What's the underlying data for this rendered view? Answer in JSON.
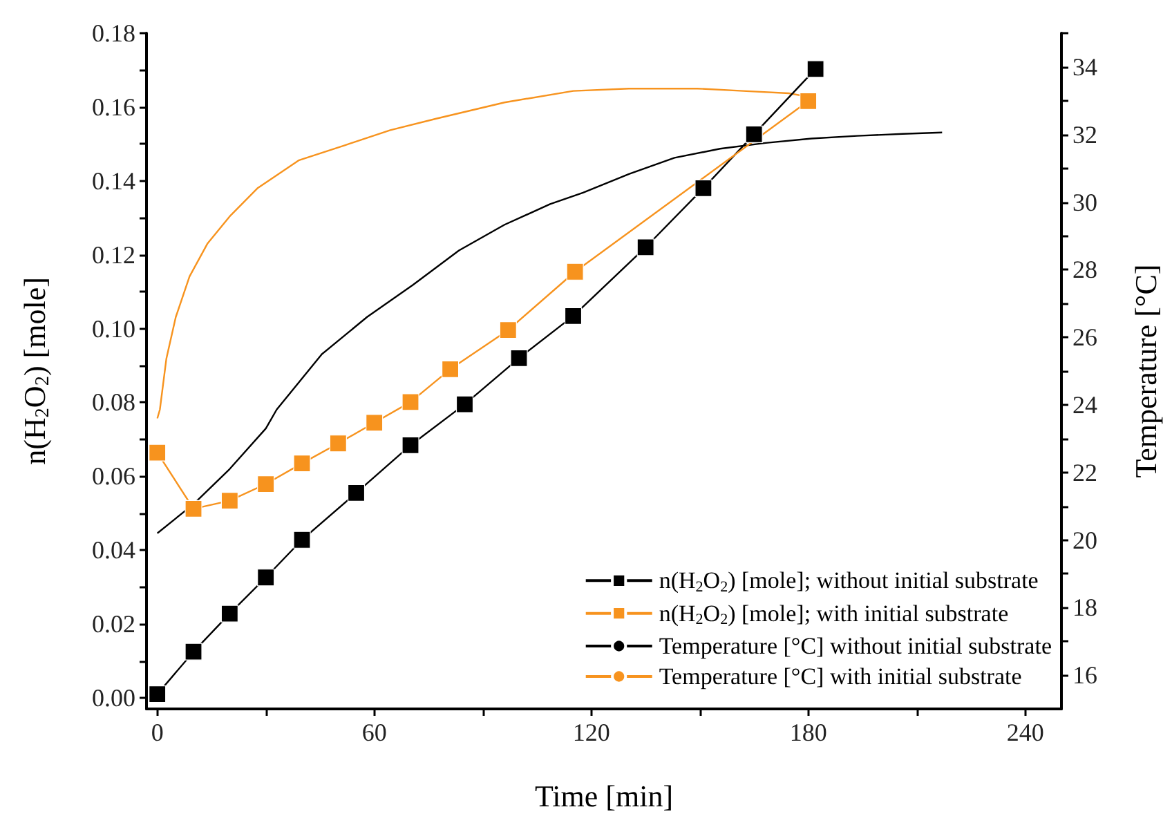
{
  "chart_data": {
    "type": "line",
    "xlabel": "Time [min]",
    "ylabel": "n(H$_{2}$O$_{2}$) [mole]",
    "y2label": "Temperature [°C]",
    "xlim": [
      -3,
      250
    ],
    "xticks": [
      0,
      {
        "value": 30,
        "label": null
      },
      60,
      {
        "value": 90,
        "label": null
      },
      120,
      {
        "value": 150,
        "label": null
      },
      180,
      {
        "value": 210,
        "label": null
      },
      240
    ],
    "ylim": [
      -0.003,
      0.18
    ],
    "yticks": [
      {
        "value": 0,
        "label": "0.00"
      },
      {
        "value": 0.01,
        "label": null
      },
      0.02,
      {
        "value": 0.03,
        "label": null
      },
      0.04,
      {
        "value": 0.05,
        "label": null
      },
      0.06,
      {
        "value": 0.07,
        "label": null
      },
      0.08,
      {
        "value": 0.09,
        "label": null
      },
      {
        "value": 0.1,
        "label": "0.10"
      },
      {
        "value": 0.11,
        "label": null
      },
      0.12,
      {
        "value": 0.13,
        "label": null
      },
      0.14,
      {
        "value": 0.15,
        "label": null
      },
      0.16,
      {
        "value": 0.17,
        "label": null
      },
      0.18
    ],
    "y2lim": [
      15,
      35
    ],
    "y2ticks": [
      16,
      {
        "value": 17,
        "label": null
      },
      18,
      {
        "value": 19,
        "label": null
      },
      20,
      {
        "value": 21,
        "label": null
      },
      22,
      {
        "value": 23,
        "label": null
      },
      24,
      {
        "value": 25,
        "label": null
      },
      26,
      {
        "value": 27,
        "label": null
      },
      28,
      {
        "value": 29,
        "label": null
      },
      30,
      {
        "value": 31,
        "label": null
      },
      32,
      {
        "value": 33,
        "label": null
      },
      34,
      {
        "value": 35,
        "label": null
      }
    ],
    "grid": false,
    "legend": "bottom right",
    "line_style": "solid",
    "series": [
      {
        "name": "n(H$_{2}$O$_{2}$) [mole]; without initial substrate",
        "color": "#000000",
        "marker": "square",
        "x": [
          0,
          10,
          20,
          30,
          40,
          55,
          70,
          85,
          100,
          115,
          135,
          151,
          165,
          182
        ],
        "values": [
          0.001,
          0.0125,
          0.0228,
          0.0326,
          0.0428,
          0.0555,
          0.0684,
          0.0795,
          0.092,
          0.1034,
          0.122,
          0.138,
          0.1526,
          0.1703
        ]
      },
      {
        "name": "n(H$_{2}$O$_{2}$) [mole]; with initial substrate",
        "color": "#f7931e",
        "marker": "square",
        "x": [
          0,
          10,
          20,
          30,
          40,
          50,
          60,
          70,
          81,
          97,
          115.5,
          180
        ],
        "values": [
          0.0664,
          0.0512,
          0.0534,
          0.0579,
          0.0635,
          0.0689,
          0.0745,
          0.0801,
          0.089,
          0.0996,
          0.1154,
          0.1616
        ]
      },
      {
        "name": "Temperature [°C] without initial substrate",
        "color": "#000000",
        "marker": "none",
        "axis": "y2",
        "x": [
          0,
          10,
          20,
          30,
          33,
          45.5,
          58,
          70.7,
          83.4,
          96,
          108.6,
          117.7,
          130.4,
          143,
          155.6,
          168.2,
          180.9,
          193.5,
          206.1,
          217
        ],
        "values": [
          20.2,
          21.06,
          22.1,
          23.3,
          23.86,
          25.5,
          26.6,
          27.55,
          28.57,
          29.33,
          29.94,
          30.28,
          30.83,
          31.31,
          31.58,
          31.75,
          31.88,
          31.96,
          32.02,
          32.06
        ]
      },
      {
        "name": "Temperature [°C] with initial substrate",
        "color": "#f7931e",
        "marker": "none",
        "axis": "y2",
        "x": [
          0,
          0.7,
          2.5,
          5.1,
          8.9,
          13.9,
          20.2,
          27.8,
          39.2,
          51.8,
          64.4,
          77.1,
          96,
          115,
          130.4,
          149.3,
          162,
          174.6,
          182
        ],
        "values": [
          23.6,
          23.86,
          25.37,
          26.6,
          27.8,
          28.78,
          29.6,
          30.42,
          31.24,
          31.68,
          32.13,
          32.47,
          32.95,
          33.29,
          33.36,
          33.36,
          33.29,
          33.22,
          33.08
        ]
      }
    ]
  }
}
